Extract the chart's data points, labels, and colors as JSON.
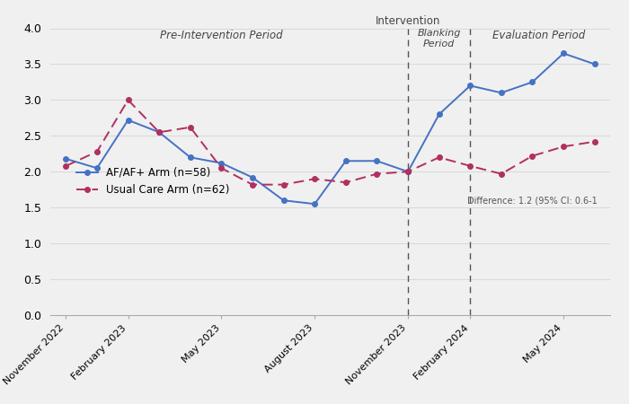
{
  "blue_x": [
    0,
    1,
    2,
    3,
    4,
    5,
    6,
    7,
    8,
    9,
    10,
    11,
    12,
    13,
    14,
    15,
    16,
    17
  ],
  "blue_y": [
    2.18,
    2.05,
    2.72,
    2.55,
    2.2,
    2.12,
    1.92,
    1.6,
    1.55,
    2.15,
    2.15,
    2.0,
    2.8,
    3.2,
    3.1,
    3.25,
    3.65,
    3.5
  ],
  "red_x": [
    0,
    1,
    2,
    3,
    4,
    5,
    6,
    7,
    8,
    9,
    10,
    11,
    12,
    13,
    14,
    15,
    16,
    17
  ],
  "red_y": [
    2.08,
    2.28,
    3.0,
    2.55,
    2.62,
    2.05,
    1.82,
    1.82,
    1.9,
    1.85,
    1.97,
    2.0,
    2.2,
    2.08,
    1.97,
    2.22,
    2.35,
    2.42
  ],
  "xtick_positions": [
    0,
    2,
    5,
    8,
    11,
    13,
    16
  ],
  "xtick_labels": [
    "November 2022",
    "February 2023",
    "May 2023",
    "August 2023",
    "November 2023",
    "February 2024",
    "May 2024"
  ],
  "ylim": [
    0.0,
    4.0
  ],
  "yticks": [
    0.0,
    0.5,
    1.0,
    1.5,
    2.0,
    2.5,
    3.0,
    3.5,
    4.0
  ],
  "blue_color": "#4472C4",
  "red_color": "#B03060",
  "vline1_x": 11,
  "vline2_x": 13,
  "pre_intervention_label": "Pre-Intervention Period",
  "pre_intervention_x": 5.0,
  "pre_intervention_y": 3.82,
  "blanking_label": "Blanking\nPeriod",
  "blanking_x": 12.0,
  "blanking_y": 3.72,
  "evaluation_label": "Evaluation Period",
  "evaluation_x": 15.2,
  "evaluation_y": 3.82,
  "intervention_label": "Intervention",
  "intervention_x": 11.0,
  "intervention_y": 4.02,
  "difference_text": "Difference: 1.2 (95% CI: 0.6-1",
  "difference_x": 15.0,
  "difference_y": 1.6,
  "legend_af": "AF/AF+ Arm (n=58)",
  "legend_uc": "Usual Care Arm (n=62)",
  "bg_color": "#f0f0f0",
  "grid_color": "#d8d8d8"
}
